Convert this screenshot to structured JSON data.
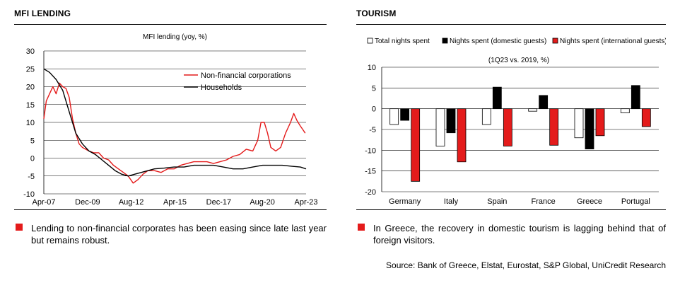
{
  "left_panel": {
    "title": "MFI LENDING",
    "note": "Lending to non-financial corporates has been easing since late last year but remains robust."
  },
  "right_panel": {
    "title": "TOURISM",
    "note": "In Greece, the recovery in domestic tourism is lagging behind that of foreign visitors.",
    "source": "Source: Bank of Greece, Elstat, Eurostat, S&P Global, UniCredit Research"
  },
  "colors": {
    "red": "#e41b1b",
    "black": "#000000",
    "white": "#ffffff",
    "grid": "#000000"
  },
  "chart_data": [
    {
      "type": "line",
      "title": "MFI lending (yoy, %)",
      "xlabel": "",
      "ylabel": "",
      "ylim": [
        -10,
        30
      ],
      "yticks": [
        -10,
        -5,
        0,
        5,
        10,
        15,
        20,
        25,
        30
      ],
      "x_tick_labels": [
        "Apr-07",
        "Dec-09",
        "Aug-12",
        "Apr-15",
        "Dec-17",
        "Aug-20",
        "Apr-23"
      ],
      "x_tick_positions": [
        2007.25,
        2009.92,
        2012.58,
        2015.25,
        2017.92,
        2020.58,
        2023.25
      ],
      "xlim": [
        2007.25,
        2023.25
      ],
      "legend_placement": "upper-right",
      "series": [
        {
          "name": "Non-financial corporations",
          "color": "#e41b1b",
          "points": [
            [
              2007.25,
              11
            ],
            [
              2007.4,
              16
            ],
            [
              2007.6,
              18
            ],
            [
              2007.8,
              20
            ],
            [
              2008.0,
              18
            ],
            [
              2008.2,
              21
            ],
            [
              2008.4,
              20
            ],
            [
              2008.6,
              19.5
            ],
            [
              2008.8,
              17
            ],
            [
              2009.0,
              11
            ],
            [
              2009.2,
              7
            ],
            [
              2009.4,
              4
            ],
            [
              2009.6,
              3
            ],
            [
              2009.8,
              2.5
            ],
            [
              2010.0,
              2
            ],
            [
              2010.3,
              1.5
            ],
            [
              2010.6,
              1.5
            ],
            [
              2010.9,
              0
            ],
            [
              2011.2,
              -0.5
            ],
            [
              2011.5,
              -2
            ],
            [
              2011.8,
              -3
            ],
            [
              2012.1,
              -4
            ],
            [
              2012.4,
              -5
            ],
            [
              2012.7,
              -7
            ],
            [
              2013.0,
              -6
            ],
            [
              2013.3,
              -4.5
            ],
            [
              2013.6,
              -3.5
            ],
            [
              2014.0,
              -3.5
            ],
            [
              2014.4,
              -4
            ],
            [
              2014.8,
              -3
            ],
            [
              2015.2,
              -3
            ],
            [
              2015.6,
              -2
            ],
            [
              2016.0,
              -1.5
            ],
            [
              2016.4,
              -1
            ],
            [
              2016.8,
              -1
            ],
            [
              2017.2,
              -1
            ],
            [
              2017.6,
              -1.5
            ],
            [
              2018.0,
              -1
            ],
            [
              2018.4,
              -0.5
            ],
            [
              2018.8,
              0.5
            ],
            [
              2019.2,
              1
            ],
            [
              2019.6,
              2.5
            ],
            [
              2020.0,
              2
            ],
            [
              2020.3,
              5
            ],
            [
              2020.5,
              10
            ],
            [
              2020.7,
              10
            ],
            [
              2020.9,
              7
            ],
            [
              2021.1,
              3
            ],
            [
              2021.4,
              2
            ],
            [
              2021.7,
              3
            ],
            [
              2022.0,
              7
            ],
            [
              2022.3,
              10
            ],
            [
              2022.5,
              12.5
            ],
            [
              2022.7,
              10.5
            ],
            [
              2022.9,
              9
            ],
            [
              2023.05,
              8
            ],
            [
              2023.2,
              7
            ]
          ]
        },
        {
          "name": "Households",
          "color": "#000000",
          "points": [
            [
              2007.25,
              25
            ],
            [
              2007.6,
              24
            ],
            [
              2008.0,
              22
            ],
            [
              2008.4,
              19
            ],
            [
              2008.8,
              13
            ],
            [
              2009.2,
              7
            ],
            [
              2009.6,
              4
            ],
            [
              2010.0,
              2
            ],
            [
              2010.4,
              1
            ],
            [
              2010.8,
              -0.5
            ],
            [
              2011.2,
              -2
            ],
            [
              2011.6,
              -3.5
            ],
            [
              2012.0,
              -4.5
            ],
            [
              2012.4,
              -5
            ],
            [
              2012.8,
              -4.5
            ],
            [
              2013.2,
              -4
            ],
            [
              2013.6,
              -3.5
            ],
            [
              2014.0,
              -3
            ],
            [
              2014.6,
              -2.8
            ],
            [
              2015.2,
              -2.5
            ],
            [
              2015.8,
              -2.5
            ],
            [
              2016.4,
              -2
            ],
            [
              2017.0,
              -2
            ],
            [
              2017.6,
              -2
            ],
            [
              2018.2,
              -2.5
            ],
            [
              2018.8,
              -3
            ],
            [
              2019.4,
              -3
            ],
            [
              2020.0,
              -2.5
            ],
            [
              2020.6,
              -2
            ],
            [
              2021.2,
              -2
            ],
            [
              2021.8,
              -2
            ],
            [
              2022.4,
              -2.3
            ],
            [
              2022.9,
              -2.5
            ],
            [
              2023.25,
              -3
            ]
          ]
        }
      ]
    },
    {
      "type": "bar",
      "title": "(1Q23 vs. 2019, %)",
      "xlabel": "",
      "ylabel": "",
      "ylim": [
        -20,
        10
      ],
      "yticks": [
        -20,
        -15,
        -10,
        -5,
        0,
        5,
        10
      ],
      "categories": [
        "Germany",
        "Italy",
        "Spain",
        "France",
        "Greece",
        "Portugal"
      ],
      "legend_placement": "top",
      "series": [
        {
          "name": "Total nights spent",
          "color": "#ffffff",
          "values": [
            -3.8,
            -9,
            -3.8,
            -0.6,
            -7,
            -1
          ]
        },
        {
          "name": "Nights spent (domestic guests)",
          "color": "#000000",
          "values": [
            -2.8,
            -5.8,
            5.2,
            3.2,
            -9.7,
            5.6
          ]
        },
        {
          "name": "Nights spent (international guests)",
          "color": "#e41b1b",
          "values": [
            -17.5,
            -12.8,
            -9,
            -8.8,
            -6.5,
            -4.3
          ]
        }
      ]
    }
  ]
}
